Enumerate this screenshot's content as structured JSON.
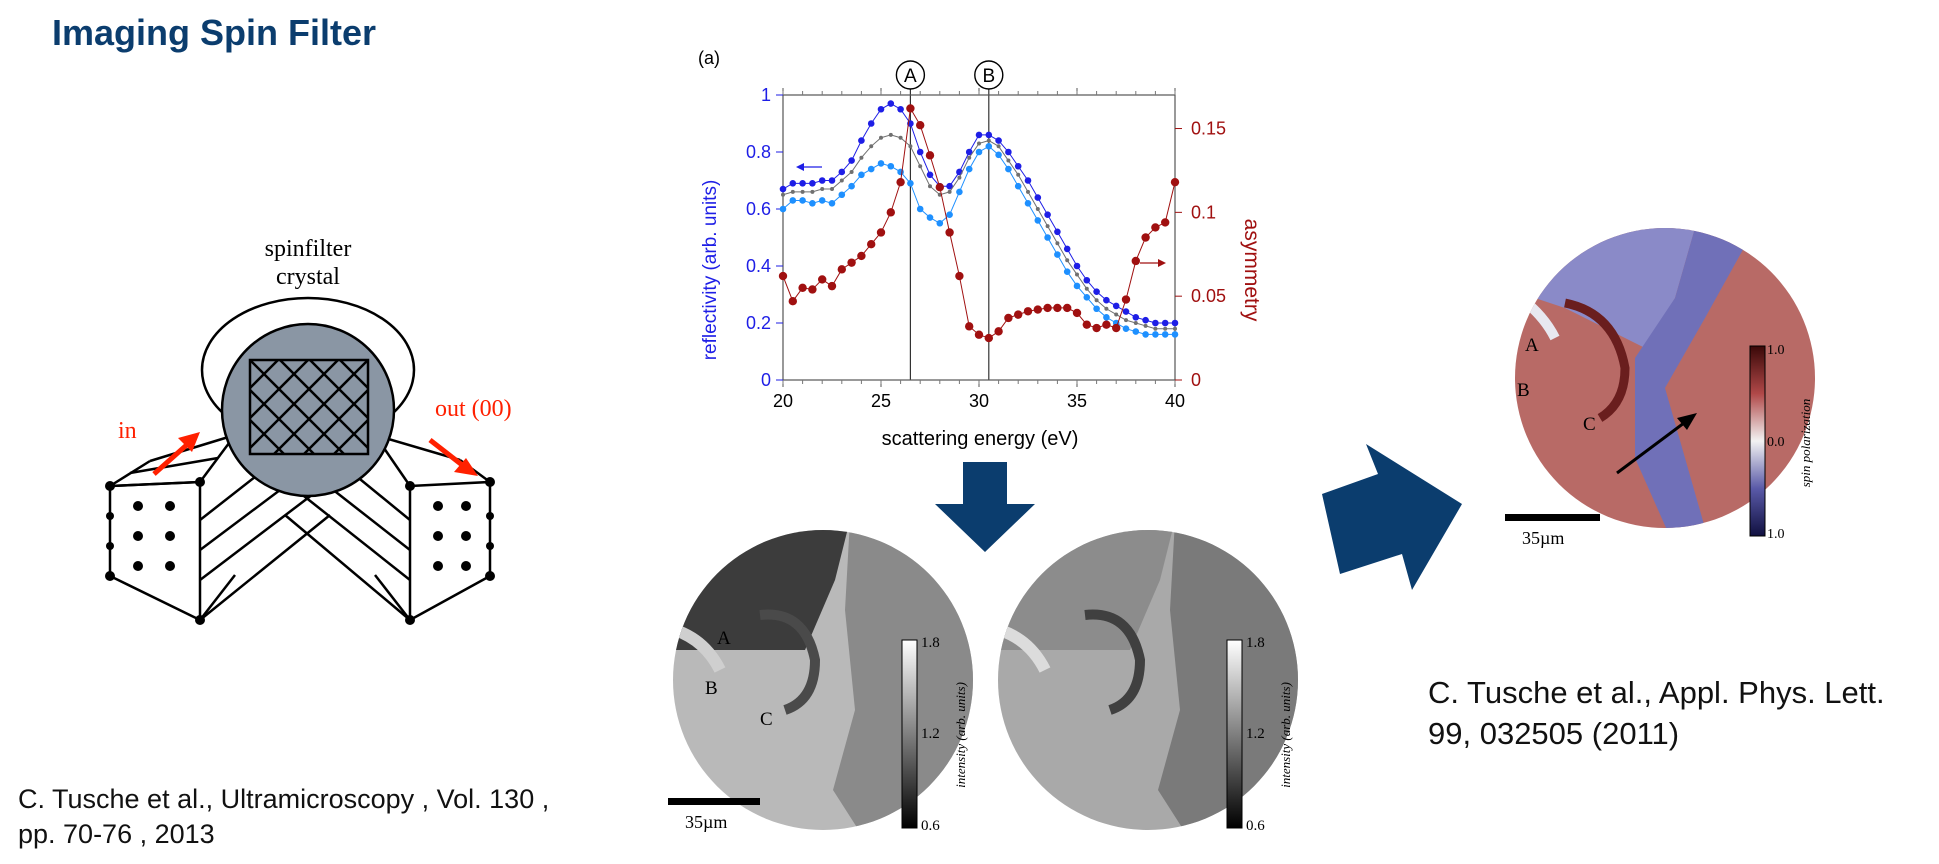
{
  "title": "Imaging Spin Filter",
  "ref_left": {
    "line1": "C. Tusche et al., Ultramicroscopy , Vol. 130 ,",
    "line2": "pp. 70-76 , 2013"
  },
  "ref_right": {
    "line1": "C. Tusche et al., Appl. Phys. Lett.",
    "line2": "99, 032505 (2011)"
  },
  "schematic": {
    "crystal_label_1": "spinfilter",
    "crystal_label_2": "crystal",
    "in_label": "in",
    "out_label": "out (00)"
  },
  "colors": {
    "title": "#0b3d6e",
    "arrow": "#0b3d6e",
    "blue_series": "#1e1ee6",
    "lightblue_series": "#1e90ff",
    "red_series": "#a01010",
    "in_out_arrows": "#ff2000"
  },
  "chart_data": {
    "type": "line",
    "panel_label": "(a)",
    "xlabel": "scattering energy (eV)",
    "ylabel": "reflectivity (arb. units)",
    "y2label": "asymmetry",
    "xlim": [
      20,
      40
    ],
    "ylim": [
      0,
      1
    ],
    "y2lim": [
      0,
      0.17
    ],
    "xticks": [
      "20",
      "25",
      "30",
      "35",
      "40"
    ],
    "yticks": [
      "0",
      "0.2",
      "0.4",
      "0.6",
      "0.8",
      "1"
    ],
    "y2ticks": [
      "0",
      "0.05",
      "0.1",
      "0.15"
    ],
    "markers": [
      {
        "label": "A",
        "x": 26.5
      },
      {
        "label": "B",
        "x": 30.5
      }
    ],
    "x": [
      20,
      20.5,
      21,
      21.5,
      22,
      22.5,
      23,
      23.5,
      24,
      24.5,
      25,
      25.5,
      26,
      26.5,
      27,
      27.5,
      28,
      28.5,
      29,
      29.5,
      30,
      30.5,
      31,
      31.5,
      32,
      32.5,
      33,
      33.5,
      34,
      34.5,
      35,
      35.5,
      36,
      36.5,
      37,
      37.5,
      38,
      38.5,
      39,
      39.5,
      40
    ],
    "series": [
      {
        "axis": "left",
        "color": "#1e1ee6",
        "values": [
          0.67,
          0.69,
          0.69,
          0.69,
          0.7,
          0.7,
          0.73,
          0.77,
          0.84,
          0.9,
          0.95,
          0.97,
          0.95,
          0.9,
          0.8,
          0.72,
          0.68,
          0.68,
          0.73,
          0.8,
          0.86,
          0.86,
          0.84,
          0.8,
          0.75,
          0.7,
          0.64,
          0.58,
          0.52,
          0.46,
          0.4,
          0.35,
          0.31,
          0.28,
          0.26,
          0.24,
          0.22,
          0.21,
          0.2,
          0.2,
          0.2
        ]
      },
      {
        "axis": "left",
        "color": "#707070",
        "values": [
          0.65,
          0.66,
          0.66,
          0.66,
          0.67,
          0.67,
          0.7,
          0.73,
          0.78,
          0.82,
          0.85,
          0.86,
          0.85,
          0.82,
          0.75,
          0.68,
          0.65,
          0.66,
          0.71,
          0.78,
          0.83,
          0.84,
          0.82,
          0.77,
          0.72,
          0.66,
          0.6,
          0.54,
          0.48,
          0.42,
          0.37,
          0.32,
          0.28,
          0.25,
          0.23,
          0.21,
          0.2,
          0.19,
          0.18,
          0.18,
          0.18
        ]
      },
      {
        "axis": "left",
        "color": "#1e90ff",
        "values": [
          0.6,
          0.63,
          0.63,
          0.62,
          0.63,
          0.62,
          0.65,
          0.68,
          0.72,
          0.74,
          0.76,
          0.75,
          0.73,
          0.69,
          0.6,
          0.57,
          0.55,
          0.58,
          0.66,
          0.74,
          0.8,
          0.82,
          0.79,
          0.74,
          0.68,
          0.62,
          0.56,
          0.5,
          0.44,
          0.38,
          0.33,
          0.29,
          0.25,
          0.22,
          0.2,
          0.18,
          0.17,
          0.16,
          0.16,
          0.16,
          0.16
        ]
      },
      {
        "axis": "right",
        "color": "#a01010",
        "values": [
          0.062,
          0.047,
          0.055,
          0.054,
          0.06,
          0.056,
          0.066,
          0.07,
          0.074,
          0.081,
          0.088,
          0.1,
          0.118,
          0.162,
          0.152,
          0.134,
          0.115,
          0.088,
          0.062,
          0.032,
          0.027,
          0.025,
          0.029,
          0.037,
          0.039,
          0.041,
          0.042,
          0.043,
          0.043,
          0.043,
          0.04,
          0.033,
          0.031,
          0.033,
          0.031,
          0.048,
          0.071,
          0.085,
          0.091,
          0.094,
          0.118
        ]
      }
    ]
  },
  "images": {
    "scale_bar": "35µm",
    "labels": [
      "A",
      "B",
      "C"
    ],
    "colorbar_max": "1.8",
    "colorbar_mid": "1.2",
    "colorbar_min": "0.6",
    "colorbar_label": "intensity (arb. units)",
    "spin_colorbar_top": "1.0",
    "spin_colorbar_mid": "0.0",
    "spin_colorbar_bottom": "1.0",
    "spin_colorbar_label": "spin polarization"
  }
}
